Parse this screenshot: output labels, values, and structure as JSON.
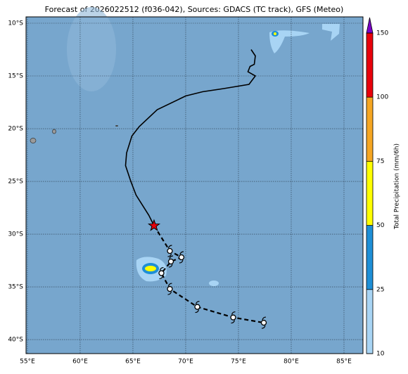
{
  "title": "Forecast of 2026022512 (f036-042), Sources: GDACS (TC track), GFS (Meteo)",
  "map": {
    "lon_range": [
      54.87,
      86.8
    ],
    "lat_range": [
      -9.4,
      -41.33
    ],
    "lon_ticks": [
      {
        "value": 55,
        "label": "55°E"
      },
      {
        "value": 60,
        "label": "60°E"
      },
      {
        "value": 65,
        "label": "65°E"
      },
      {
        "value": 70,
        "label": "70°E"
      },
      {
        "value": 75,
        "label": "75°E"
      },
      {
        "value": 80,
        "label": "80°E"
      },
      {
        "value": 85,
        "label": "85°E"
      }
    ],
    "lat_ticks": [
      {
        "value": -10,
        "label": "10°S"
      },
      {
        "value": -15,
        "label": "15°S"
      },
      {
        "value": -20,
        "label": "20°S"
      },
      {
        "value": -25,
        "label": "25°S"
      },
      {
        "value": -30,
        "label": "30°S"
      },
      {
        "value": -35,
        "label": "35°S"
      },
      {
        "value": -40,
        "label": "40°S"
      }
    ]
  },
  "track": {
    "observed": {
      "lon": [
        76.2,
        76.6,
        76.5,
        76.1,
        75.9,
        76.6,
        76.0,
        73.6,
        71.6,
        70.0,
        67.3,
        65.6,
        64.9,
        64.4,
        64.3,
        64.8,
        65.3,
        66.5,
        67.0
      ],
      "lat": [
        -12.5,
        -13.1,
        -13.9,
        -14.1,
        -14.6,
        -15.0,
        -15.8,
        -16.2,
        -16.5,
        -16.9,
        -18.2,
        -19.8,
        -20.7,
        -22.3,
        -23.5,
        -25.0,
        -26.3,
        -28.2,
        -29.2
      ]
    },
    "current": {
      "lon": 67.0,
      "lat": -29.2
    },
    "forecast": {
      "lon": [
        68.5,
        69.6,
        68.6,
        67.7,
        68.5,
        71.1,
        74.5,
        77.4
      ],
      "lat": [
        -31.6,
        -32.2,
        -32.6,
        -33.7,
        -35.2,
        -36.9,
        -37.9,
        -38.4
      ]
    }
  },
  "colorbar": {
    "label": "Total Precipitation (mm/6h)",
    "levels": [
      10,
      25,
      50,
      75,
      100,
      150
    ],
    "colors": [
      "#a8d4f4",
      "#1e8fd6",
      "#ffff00",
      "#f5a623",
      "#e8000b"
    ],
    "over_color": "#7b00c8"
  }
}
